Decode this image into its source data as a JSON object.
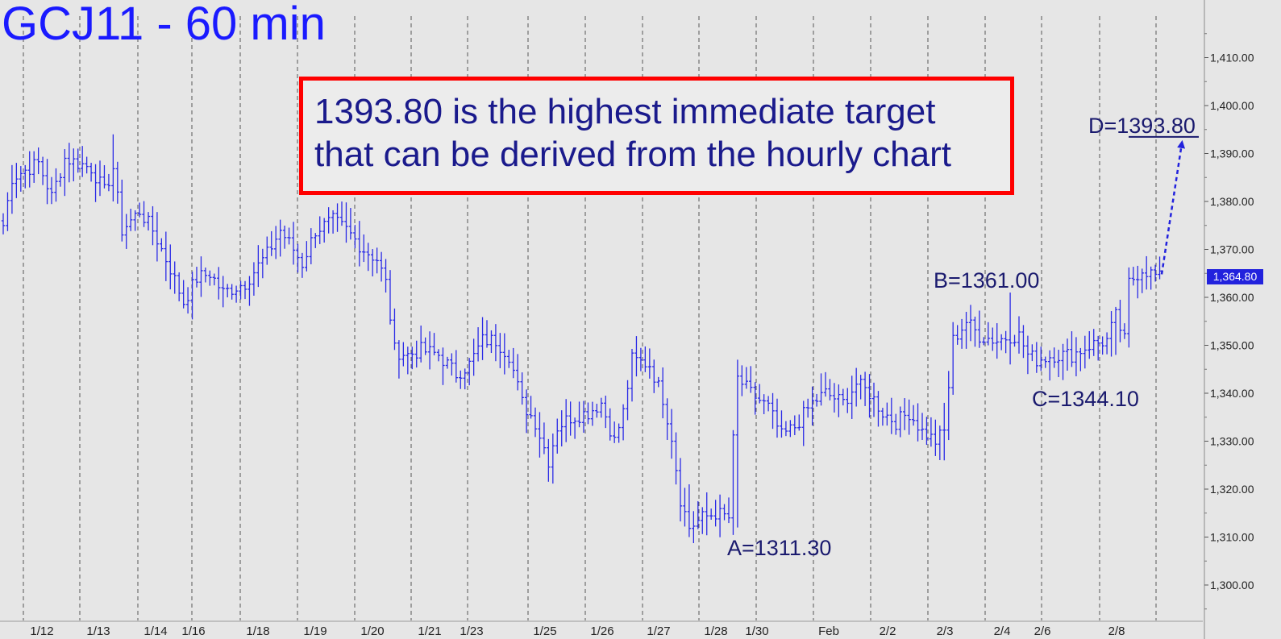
{
  "chart_data": {
    "type": "ohlc",
    "title": "GCJ11 - 60 min",
    "x_labels": [
      "1/12",
      "1/13",
      "1/14",
      "1/16",
      "1/18",
      "1/19",
      "1/20",
      "1/21",
      "1/23",
      "1/25",
      "1/26",
      "1/27",
      "1/28",
      "1/30",
      "Feb",
      "2/2",
      "2/3",
      "2/4",
      "2/6",
      "2/8"
    ],
    "y_ticks": [
      "1,300.00",
      "1,310.00",
      "1,320.00",
      "1,330.00",
      "1,340.00",
      "1,350.00",
      "1,360.00",
      "1,370.00",
      "1,380.00",
      "1,390.00",
      "1,400.00",
      "1,410.00"
    ],
    "ylim": [
      1295,
      1416
    ],
    "grid": "vertical dashed lines at session boundaries",
    "last_price": "1,364.80",
    "note": {
      "line1": "1393.80 is the highest immediate target",
      "line2": "that can be derived from the hourly chart"
    },
    "annotations": {
      "a": "A=1311.30",
      "b": "B=1361.00",
      "c": "C=1344.10",
      "d": "D=1393.80"
    },
    "target_value": 1393.8,
    "anchors": [
      {
        "x": 0,
        "y": 1375
      },
      {
        "x": 2,
        "y": 1385
      },
      {
        "x": 8,
        "y": 1388
      },
      {
        "x": 11,
        "y": 1381
      },
      {
        "x": 14,
        "y": 1389
      },
      {
        "x": 20,
        "y": 1387
      },
      {
        "x": 23,
        "y": 1382
      },
      {
        "x": 25,
        "y": 1387
      },
      {
        "x": 27,
        "y": 1374
      },
      {
        "x": 31,
        "y": 1378
      },
      {
        "x": 34,
        "y": 1374
      },
      {
        "x": 38,
        "y": 1366
      },
      {
        "x": 41,
        "y": 1359
      },
      {
        "x": 44,
        "y": 1364
      },
      {
        "x": 47,
        "y": 1365
      },
      {
        "x": 50,
        "y": 1361
      },
      {
        "x": 55,
        "y": 1363
      },
      {
        "x": 60,
        "y": 1369
      },
      {
        "x": 63,
        "y": 1374
      },
      {
        "x": 66,
        "y": 1370
      },
      {
        "x": 68,
        "y": 1367
      },
      {
        "x": 71,
        "y": 1374
      },
      {
        "x": 75,
        "y": 1376
      },
      {
        "x": 78,
        "y": 1374
      },
      {
        "x": 82,
        "y": 1370
      },
      {
        "x": 85,
        "y": 1368
      },
      {
        "x": 87,
        "y": 1363
      },
      {
        "x": 89,
        "y": 1349
      },
      {
        "x": 92,
        "y": 1348
      },
      {
        "x": 95,
        "y": 1349
      },
      {
        "x": 99,
        "y": 1348
      },
      {
        "x": 103,
        "y": 1344
      },
      {
        "x": 106,
        "y": 1346
      },
      {
        "x": 109,
        "y": 1351
      },
      {
        "x": 112,
        "y": 1351
      },
      {
        "x": 115,
        "y": 1348
      },
      {
        "x": 118,
        "y": 1338
      },
      {
        "x": 121,
        "y": 1334
      },
      {
        "x": 124,
        "y": 1326
      },
      {
        "x": 126,
        "y": 1333
      },
      {
        "x": 129,
        "y": 1335
      },
      {
        "x": 133,
        "y": 1336
      },
      {
        "x": 136,
        "y": 1338
      },
      {
        "x": 139,
        "y": 1330
      },
      {
        "x": 141,
        "y": 1336
      },
      {
        "x": 143,
        "y": 1347
      },
      {
        "x": 147,
        "y": 1346
      },
      {
        "x": 150,
        "y": 1339
      },
      {
        "x": 152,
        "y": 1331
      },
      {
        "x": 154,
        "y": 1318
      },
      {
        "x": 156,
        "y": 1312
      },
      {
        "x": 159,
        "y": 1314
      },
      {
        "x": 162,
        "y": 1315
      },
      {
        "x": 165,
        "y": 1314
      },
      {
        "x": 166,
        "y": 1330
      },
      {
        "x": 167,
        "y": 1343
      },
      {
        "x": 170,
        "y": 1340
      },
      {
        "x": 174,
        "y": 1337
      },
      {
        "x": 177,
        "y": 1331
      },
      {
        "x": 180,
        "y": 1333
      },
      {
        "x": 184,
        "y": 1338
      },
      {
        "x": 187,
        "y": 1340
      },
      {
        "x": 191,
        "y": 1338
      },
      {
        "x": 194,
        "y": 1342
      },
      {
        "x": 197,
        "y": 1340
      },
      {
        "x": 200,
        "y": 1336
      },
      {
        "x": 203,
        "y": 1334
      },
      {
        "x": 206,
        "y": 1336
      },
      {
        "x": 209,
        "y": 1332
      },
      {
        "x": 212,
        "y": 1330
      },
      {
        "x": 214,
        "y": 1332
      },
      {
        "x": 216,
        "y": 1351
      },
      {
        "x": 219,
        "y": 1355
      },
      {
        "x": 222,
        "y": 1352
      },
      {
        "x": 226,
        "y": 1351
      },
      {
        "x": 229,
        "y": 1352
      },
      {
        "x": 231,
        "y": 1352
      },
      {
        "x": 233,
        "y": 1348
      },
      {
        "x": 235,
        "y": 1347
      },
      {
        "x": 239,
        "y": 1348
      },
      {
        "x": 243,
        "y": 1348
      },
      {
        "x": 247,
        "y": 1350
      },
      {
        "x": 251,
        "y": 1351
      },
      {
        "x": 253,
        "y": 1356
      },
      {
        "x": 255,
        "y": 1351
      },
      {
        "x": 256,
        "y": 1363
      },
      {
        "x": 259,
        "y": 1366
      },
      {
        "x": 261,
        "y": 1365
      },
      {
        "x": 263,
        "y": 1364
      }
    ],
    "notable_bars": [
      {
        "x": 25,
        "low": 1380,
        "high": 1394
      },
      {
        "x": 87,
        "low": 1361,
        "high": 1368
      },
      {
        "x": 156,
        "low": 1310,
        "high": 1321
      },
      {
        "x": 167,
        "low": 1312,
        "high": 1347
      },
      {
        "x": 214,
        "low": 1326,
        "high": 1338
      },
      {
        "x": 229,
        "low": 1346,
        "high": 1361
      },
      {
        "x": 233,
        "low": 1344,
        "high": 1352
      },
      {
        "x": 253,
        "low": 1348,
        "high": 1358
      }
    ]
  },
  "colors": {
    "background": "#e6e6e6",
    "bars": "#2a2ae6",
    "grid": "#555555",
    "title": "#1a1aff",
    "annotation": "#1a1a6e",
    "note_border": "#ff0000",
    "target_arrow": "#2222dd"
  }
}
